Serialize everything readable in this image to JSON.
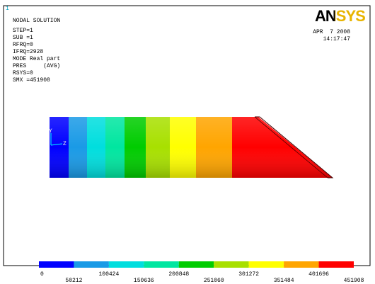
{
  "window_number": "1",
  "header": {
    "title": "NODAL SOLUTION",
    "logo": "ANSYS",
    "date": "APR  7 2008",
    "time": "14:17:47",
    "lines": [
      "STEP=1",
      "SUB =1",
      "RFRQ=0",
      "IFRQ=2928",
      "MODE Real part",
      "PRES     (AVG)",
      "RSYS=0",
      "SMX =451908"
    ]
  },
  "triad_labels": [
    "Y",
    "Z"
  ],
  "legend": {
    "colors": [
      "#0000ff",
      "#1a9ae6",
      "#00dede",
      "#00e6a0",
      "#00cc00",
      "#a8e000",
      "#ffff00",
      "#ffa500",
      "#ff0000"
    ],
    "labels": [
      "0",
      "50212",
      "100424",
      "150636",
      "200848",
      "251060",
      "301272",
      "351484",
      "401696",
      "451908"
    ]
  }
}
